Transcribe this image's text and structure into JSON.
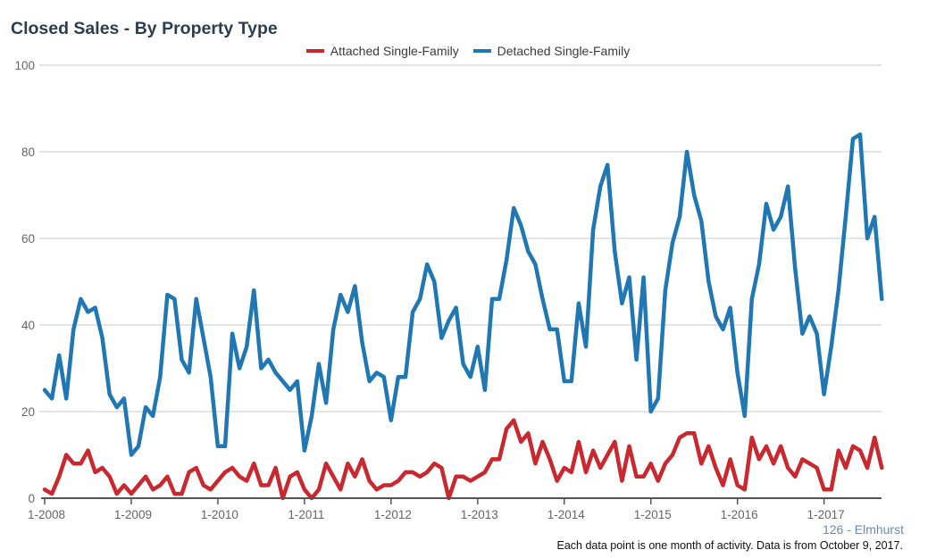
{
  "chart_data": {
    "type": "line",
    "title": "Closed Sales - By Property Type",
    "xlabel": "",
    "ylabel": "",
    "ylim": [
      0,
      100
    ],
    "yticks": [
      "0",
      "20",
      "40",
      "60",
      "80",
      "100"
    ],
    "xticks": [
      "1-2008",
      "1-2009",
      "1-2010",
      "1-2011",
      "1-2012",
      "1-2013",
      "1-2014",
      "1-2015",
      "1-2016",
      "1-2017"
    ],
    "x_start": "1-2008",
    "x_interval": "month",
    "grid": true,
    "legend": "top-center",
    "series": [
      {
        "name": "Attached Single-Family",
        "color": "#c8282e",
        "values": [
          2,
          1,
          5,
          10,
          8,
          8,
          11,
          6,
          7,
          5,
          1,
          3,
          1,
          3,
          5,
          2,
          3,
          5,
          1,
          1,
          6,
          7,
          3,
          2,
          4,
          6,
          7,
          5,
          4,
          8,
          3,
          3,
          7,
          0,
          5,
          6,
          2,
          0,
          2,
          8,
          5,
          2,
          8,
          5,
          9,
          4,
          2,
          3,
          3,
          4,
          6,
          6,
          5,
          6,
          8,
          7,
          0,
          5,
          5,
          4,
          5,
          6,
          9,
          9,
          16,
          18,
          13,
          15,
          8,
          13,
          9,
          4,
          7,
          6,
          13,
          6,
          11,
          7,
          10,
          13,
          4,
          12,
          5,
          5,
          8,
          4,
          8,
          10,
          14,
          15,
          15,
          8,
          12,
          7,
          3,
          9,
          3,
          2,
          14,
          9,
          12,
          8,
          12,
          7,
          5,
          9,
          8,
          7,
          2,
          2,
          11,
          7,
          12,
          11,
          7,
          14,
          7
        ]
      },
      {
        "name": "Detached Single-Family",
        "color": "#1f77b4",
        "values": [
          25,
          23,
          33,
          23,
          39,
          46,
          43,
          44,
          37,
          24,
          21,
          23,
          10,
          12,
          21,
          19,
          28,
          47,
          46,
          32,
          29,
          46,
          37,
          28,
          12,
          12,
          38,
          30,
          35,
          48,
          30,
          32,
          29,
          27,
          25,
          27,
          11,
          19,
          31,
          22,
          39,
          47,
          43,
          49,
          36,
          27,
          29,
          28,
          18,
          28,
          28,
          43,
          46,
          54,
          50,
          37,
          41,
          44,
          31,
          28,
          35,
          25,
          46,
          46,
          55,
          67,
          63,
          57,
          54,
          46,
          39,
          39,
          27,
          27,
          45,
          35,
          62,
          72,
          77,
          57,
          45,
          51,
          32,
          51,
          20,
          23,
          48,
          59,
          65,
          80,
          70,
          64,
          50,
          42,
          39,
          44,
          29,
          19,
          46,
          54,
          68,
          62,
          65,
          72,
          53,
          38,
          42,
          38,
          24,
          35,
          48,
          65,
          83,
          84,
          60,
          65,
          46
        ]
      }
    ]
  },
  "footer": {
    "area_label": "126 - Elmhurst",
    "note": "Each data point is one month of activity. Data is from October 9, 2017."
  }
}
